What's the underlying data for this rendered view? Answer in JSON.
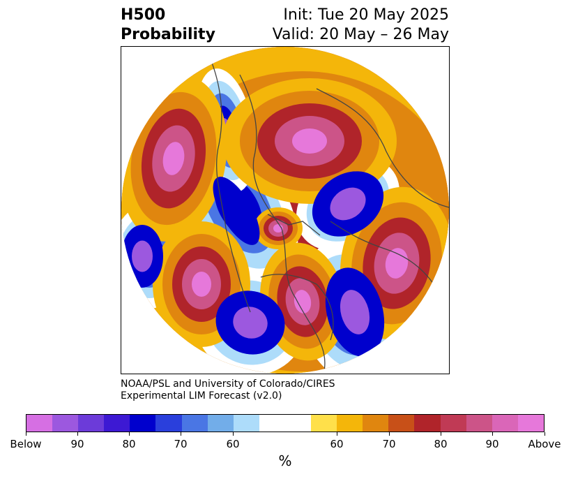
{
  "header": {
    "title_line1": "H500",
    "title_line2": "Probability",
    "init_line": "Init: Tue 20 May 2025",
    "valid_line": "Valid: 20 May – 26 May"
  },
  "credit": {
    "line1": "NOAA/PSL and University of Colorado/CIRES",
    "line2": "Experimental LIM Forecast (v2.0)"
  },
  "colorbar": {
    "unit_label": "%",
    "segments": [
      "#d66fe3",
      "#9c58df",
      "#6c3bd9",
      "#3d19d3",
      "#0000cd",
      "#2a3fdc",
      "#4a76e4",
      "#72ade9",
      "#addcfa",
      "#ffffff",
      "#ffffff",
      "#ffe04a",
      "#f4b60a",
      "#e0860f",
      "#c85018",
      "#b0242a",
      "#c03a55",
      "#cc5488",
      "#da66b8",
      "#e678da"
    ],
    "ticks": [
      "Below",
      "90",
      "80",
      "70",
      "60",
      "60",
      "70",
      "80",
      "90",
      "Above"
    ]
  },
  "map": {
    "palette": {
      "above_pink": "#e678da",
      "above_rose": "#cc5488",
      "above_red": "#b0242a",
      "above_orange": "#e0860f",
      "above_yellow": "#f4b60a",
      "below_purple": "#9c58df",
      "below_blue": "#0000cd",
      "below_mid": "#4a76e4",
      "below_light": "#addcfa",
      "coast": "#444444"
    }
  }
}
